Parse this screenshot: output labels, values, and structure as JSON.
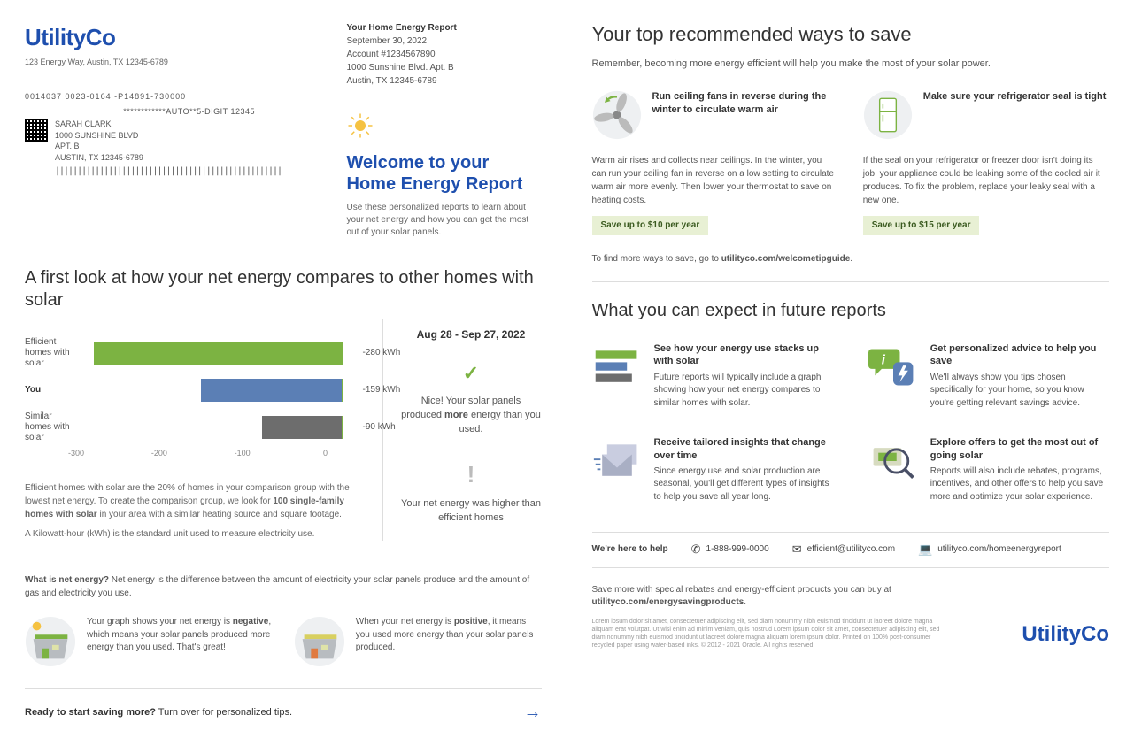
{
  "brand": {
    "name": "UtilityCo",
    "color": "#1e4fae"
  },
  "company_address": "123 Energy Way, Austin, TX 12345-6789",
  "report_meta": {
    "title": "Your Home Energy Report",
    "date": "September 30, 2022",
    "account": "Account #1234567890",
    "addr1": "1000 Sunshine Blvd. Apt. B",
    "addr2": "Austin, TX 12345-6789"
  },
  "mailing": {
    "codes": "0014037    0023-0164    -P14891-730000",
    "auto": "************AUTO**5-DIGIT 12345",
    "name": "SARAH CLARK",
    "addr1": "1000 SUNSHINE BLVD",
    "addr2": "APT. B",
    "addr3": "AUSTIN, TX 12345-6789",
    "postal": "|||||||||||||||||||||||||||||||||||||||||||||||||||"
  },
  "welcome": {
    "title1": "Welcome to your",
    "title2": "Home Energy Report",
    "blurb": "Use these personalized reports to learn about your net energy and how you can get the most out of your solar panels."
  },
  "compare": {
    "title": "A first look at how your net energy compares to other homes with solar",
    "date_range": "Aug 28 - Sep 27, 2022",
    "status1_pre": "Nice! Your solar panels produced ",
    "status1_bold": "more",
    "status1_post": " energy than you used.",
    "status2": "Your net energy was higher than efficient homes",
    "chart": {
      "type": "bar",
      "x_min": -300,
      "x_max": 0,
      "ticks": [
        -300,
        -200,
        -100,
        0
      ],
      "zero_line_color": "#7cb342",
      "rows": [
        {
          "label": "Efficient homes with solar",
          "value": -280,
          "display": "-280 kWh",
          "color": "#7cb342"
        },
        {
          "label": "You",
          "value": -159,
          "display": "-159 kWh",
          "color": "#5b7fb5",
          "bold": true
        },
        {
          "label": "Similar homes with solar",
          "value": -90,
          "display": "-90 kWh",
          "color": "#6d6d6d"
        }
      ]
    },
    "note1_pre": "Efficient homes with solar are the 20% of homes in your comparison group with the lowest net energy. To create the comparison group, we look for ",
    "note1_bold": "100 single-family homes with solar",
    "note1_post": " in your area with a similar heating source and square footage.",
    "note2": "A Kilowatt-hour (kWh) is the standard unit used to measure electricity use."
  },
  "net_energy": {
    "lead_bold": "What is net energy?",
    "lead_body": " Net energy is the difference between the amount of electricity your solar panels produce and the amount of gas and electricity you use.",
    "neg_pre": "Your graph shows your net energy is ",
    "neg_bold": "negative",
    "neg_post": ", which means your solar panels produced more energy than you used. That's great!",
    "pos_pre": "When your net energy is ",
    "pos_bold": "positive",
    "pos_post": ", it means you used more energy than your solar panels produced."
  },
  "ready": {
    "bold": "Ready to start saving more?",
    "rest": " Turn over for personalized tips."
  },
  "tips": {
    "title": "Your top recommended ways to save",
    "sub": "Remember, becoming more energy efficient will help you make the most of your solar power.",
    "items": [
      {
        "title": "Run ceiling fans in reverse during the winter to circulate warm air",
        "body": "Warm air rises and collects near ceilings. In the winter, you can run your ceiling fan in reverse on a low setting to circulate warm air more evenly. Then lower your thermostat to save on heating costs.",
        "save": "Save up to $10 per year"
      },
      {
        "title": "Make sure your refrigerator seal is tight",
        "body": "If the seal on your refrigerator or freezer door isn't doing its job, your appliance could be leaking some of the cooled air it produces. To fix the problem, replace your leaky seal with a new one.",
        "save": "Save up to $15 per year"
      }
    ],
    "more_pre": "To find more ways to save, go to ",
    "more_bold": "utilityco.com/welcometipguide",
    "more_post": "."
  },
  "future": {
    "title": "What you can expect in future reports",
    "items": [
      {
        "title": "See how your energy use stacks up with solar",
        "body": "Future reports will typically include a graph showing how your net energy compares to similar homes with solar."
      },
      {
        "title": "Get personalized advice to help you save",
        "body": "We'll always show you tips chosen specifically for your home, so you know you're getting relevant savings advice."
      },
      {
        "title": "Receive tailored insights that change over time",
        "body": "Since energy use and solar production are seasonal, you'll get different types of insights to help you save all year long."
      },
      {
        "title": "Explore offers to get the most out of going solar",
        "body": "Reports will also include rebates, programs, incentives, and other offers to help you save more and optimize your solar experience."
      }
    ]
  },
  "help": {
    "label": "We're here to help",
    "phone": "1-888-999-0000",
    "email": "efficient@utilityco.com",
    "web": "utilityco.com/homeenergyreport"
  },
  "footer": {
    "note_pre": "Save more with special rebates and energy-efficient products you can buy at ",
    "note_bold": "utilityco.com/energysavingproducts",
    "note_post": ".",
    "legal": "Lorem ipsum dolor sit amet, consectetuer adipiscing elit, sed diam nonummy nibh euismod tincidunt ut laoreet dolore magna aliquam erat volutpat. Ut wisi enim ad minim veniam, quis nostrud Lorem ipsum dolor sit amet, consectetuer adipiscing elit, sed diam nonummy nibh euismod tincidunt ut laoreet dolore magna aliquam lorem ipsum dolor. Printed on 100% post-consumer recycled paper using water-based inks. © 2012 - 2021 Oracle. All rights reserved."
  }
}
